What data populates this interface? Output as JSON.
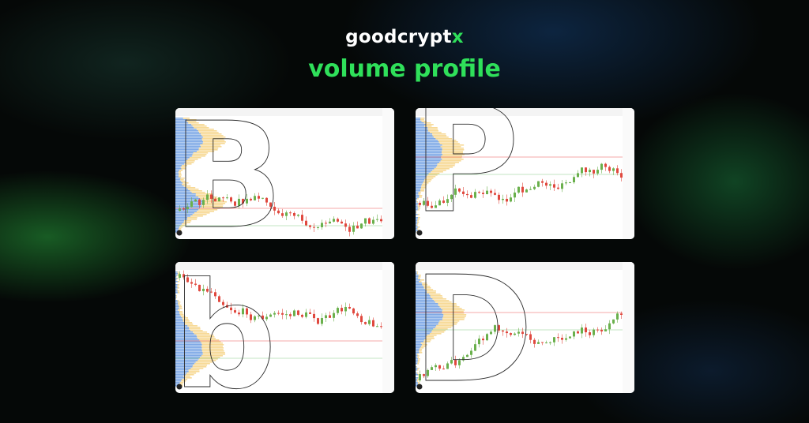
{
  "logo": {
    "text": "goodcrypt",
    "mark": "x"
  },
  "title": "volume profile",
  "panels": [
    {
      "letter": "B"
    },
    {
      "letter": "P"
    },
    {
      "letter": "b"
    },
    {
      "letter": "D"
    }
  ]
}
